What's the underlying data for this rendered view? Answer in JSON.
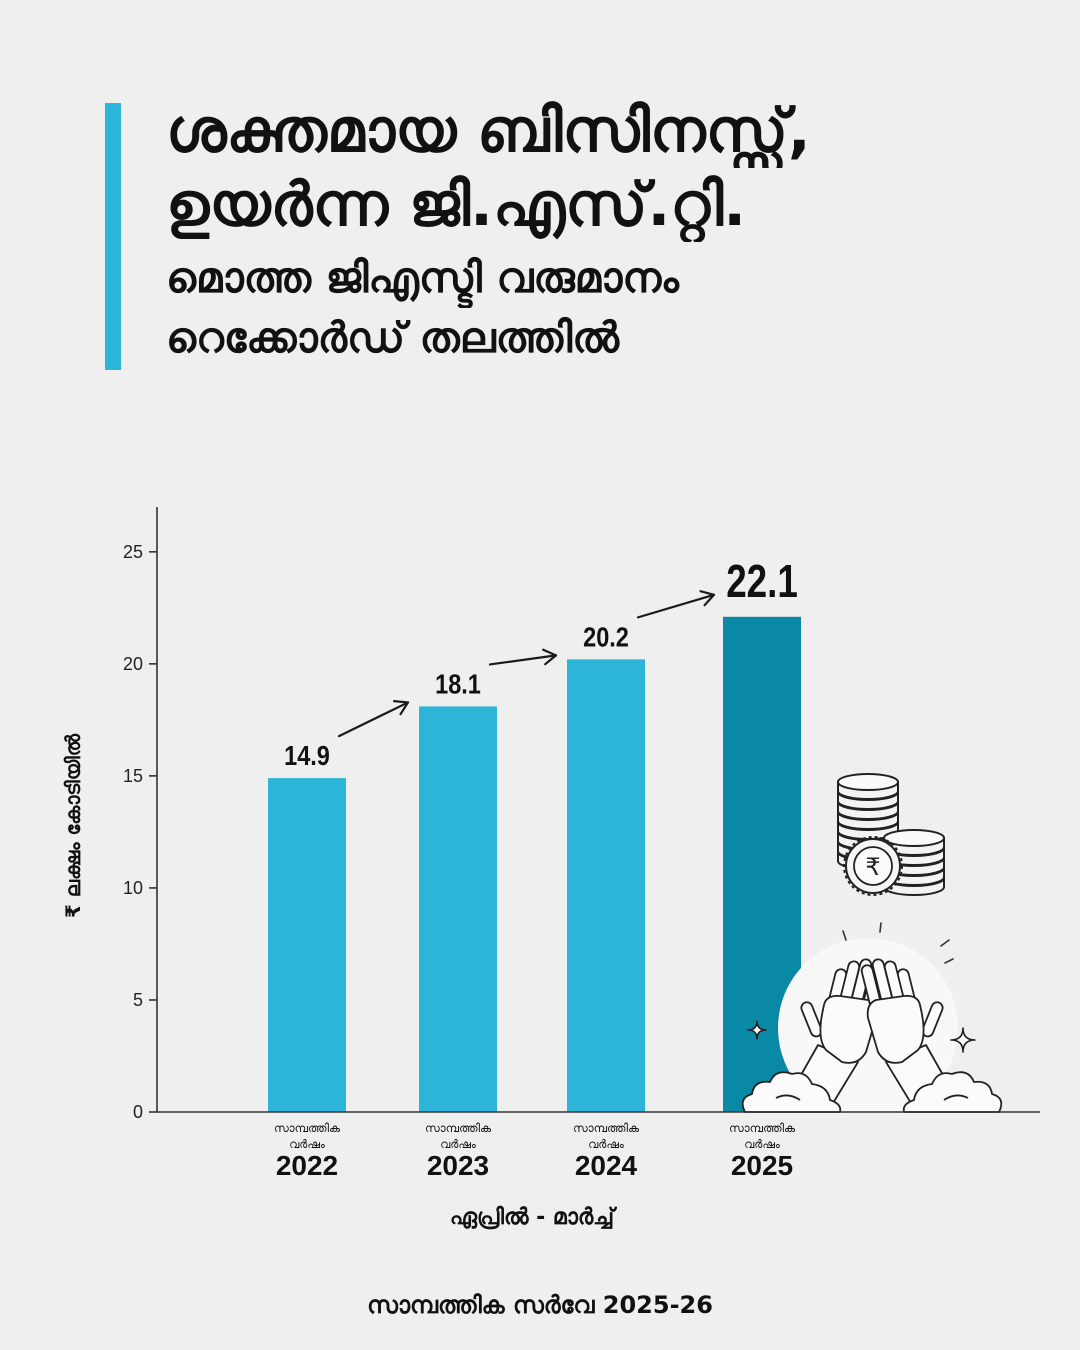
{
  "header": {
    "title_lines": [
      "ശക്തമായ ബിസിനസ്സ്,",
      "ഉയർന്ന ജി.എസ്.റ്റി."
    ],
    "subtitle_lines": [
      "മൊത്ത ജിഎസ്ടി വരുമാനം",
      "റെക്കോർഡ് തലത്തിൽ"
    ]
  },
  "chart_data": {
    "type": "bar",
    "categories": [
      "2022",
      "2023",
      "2024",
      "2025"
    ],
    "category_caption": [
      "സാമ്പത്തിക",
      "വർഷം"
    ],
    "values": [
      14.9,
      18.1,
      20.2,
      22.1
    ],
    "highlight_index": 3,
    "xlabel": "ഏപ്രിൽ - മാർച്ച്",
    "ylabel": "₹ ലക്ഷം കോടിയിൽ",
    "ylim": [
      0,
      27
    ],
    "yticks": [
      0,
      5,
      10,
      15,
      20,
      25
    ],
    "grid": false,
    "colors": {
      "bar": "#2cb5d6",
      "highlight": "#0a89a6",
      "axis": "#333333",
      "label": "#111111"
    }
  },
  "footer": {
    "source": "സാമ്പത്തിക സർവേ 2025-26"
  },
  "illustration": {
    "coin_symbol": "₹",
    "icons": [
      "coins-rupee-icon",
      "high-five-icon",
      "sparkle-icon"
    ]
  },
  "theme": {
    "background": "#efefef",
    "accent": "#2db6d8",
    "text": "#111111"
  }
}
